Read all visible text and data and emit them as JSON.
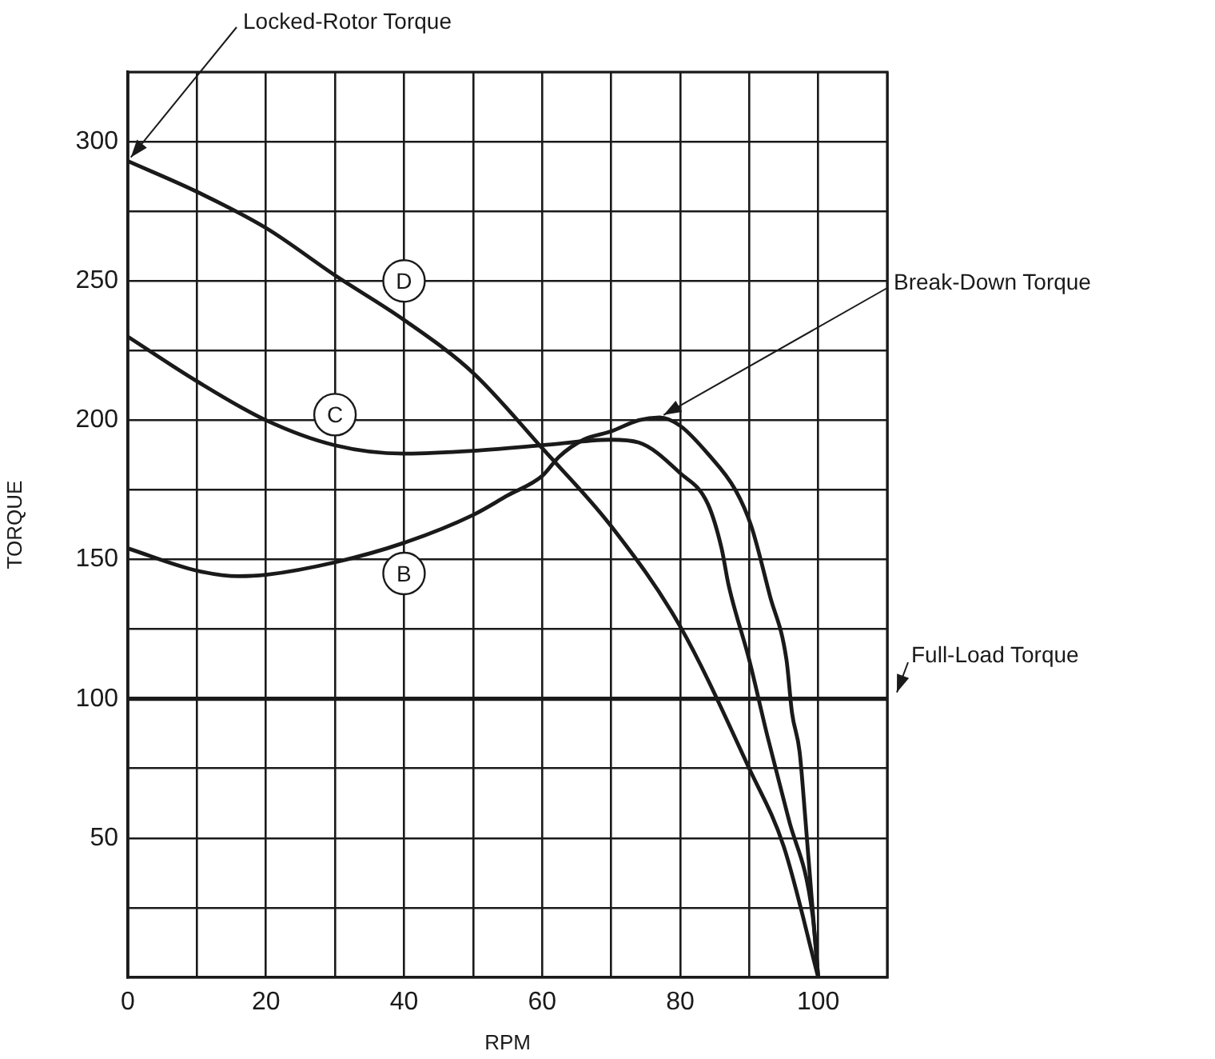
{
  "chart_data": {
    "type": "line",
    "xlabel": "RPM",
    "ylabel": "TORQUE",
    "xlim": [
      0,
      110
    ],
    "ylim": [
      0,
      325
    ],
    "xticks": [
      0,
      {
        "value": 10,
        "label": null
      },
      20,
      {
        "value": 30,
        "label": null
      },
      40,
      {
        "value": 50,
        "label": null
      },
      60,
      {
        "value": 70,
        "label": null
      },
      80,
      {
        "value": 90,
        "label": null
      },
      100,
      {
        "value": 110,
        "label": null
      }
    ],
    "yticks": [
      {
        "value": 25,
        "label": null
      },
      50,
      {
        "value": 75,
        "label": null
      },
      100,
      {
        "value": 125,
        "label": null
      },
      150,
      {
        "value": 175,
        "label": null
      },
      200,
      {
        "value": 225,
        "label": null
      },
      250,
      {
        "value": 275,
        "label": null
      },
      300,
      {
        "value": 325,
        "label": null
      }
    ],
    "grid": true,
    "legend": false,
    "marker": "none",
    "line_style": "solid",
    "series": [
      {
        "color": "#1a1a1a",
        "x": [
          0,
          10,
          20,
          30,
          40,
          50,
          60,
          70,
          80,
          90,
          95,
          100
        ],
        "values": [
          293,
          282,
          269,
          252,
          236,
          217,
          190,
          162,
          126,
          75,
          47,
          0
        ]
      },
      {
        "color": "#1a1a1a",
        "x": [
          0,
          10,
          20,
          30,
          40,
          50,
          60,
          70,
          74,
          80,
          84,
          86,
          87,
          90,
          92.6,
          95.7,
          99.2,
          100
        ],
        "values": [
          230,
          214,
          200,
          191,
          188,
          189,
          191,
          193,
          192,
          181,
          170,
          154,
          141,
          114,
          87,
          57,
          22,
          0
        ]
      },
      {
        "color": "#1a1a1a",
        "x": [
          0,
          10,
          16,
          20,
          30,
          40,
          50,
          55,
          60,
          62.5,
          66,
          70,
          74,
          77,
          80,
          84,
          88,
          90.3,
          93,
          95.4,
          96.2,
          97.3,
          98.1,
          99,
          100
        ],
        "values": [
          154,
          146,
          144,
          144.5,
          149,
          156,
          166,
          173,
          180,
          187,
          193,
          196,
          200,
          201,
          198,
          188,
          175,
          162,
          137,
          114,
          95,
          81,
          58,
          30,
          0
        ]
      }
    ],
    "ref_lines": [
      {
        "axis": "y",
        "value": 100,
        "label": "Full-Load Torque"
      }
    ],
    "annotations": [
      {
        "text": "Locked-Rotor Torque",
        "x": 0,
        "y": 293
      },
      {
        "text": "Break-Down Torque",
        "x": 77,
        "y": 201
      },
      {
        "text": "D",
        "x": 40,
        "y": 250
      },
      {
        "text": "C",
        "x": 30,
        "y": 202
      },
      {
        "text": "B",
        "x": 40,
        "y": 145
      }
    ]
  }
}
